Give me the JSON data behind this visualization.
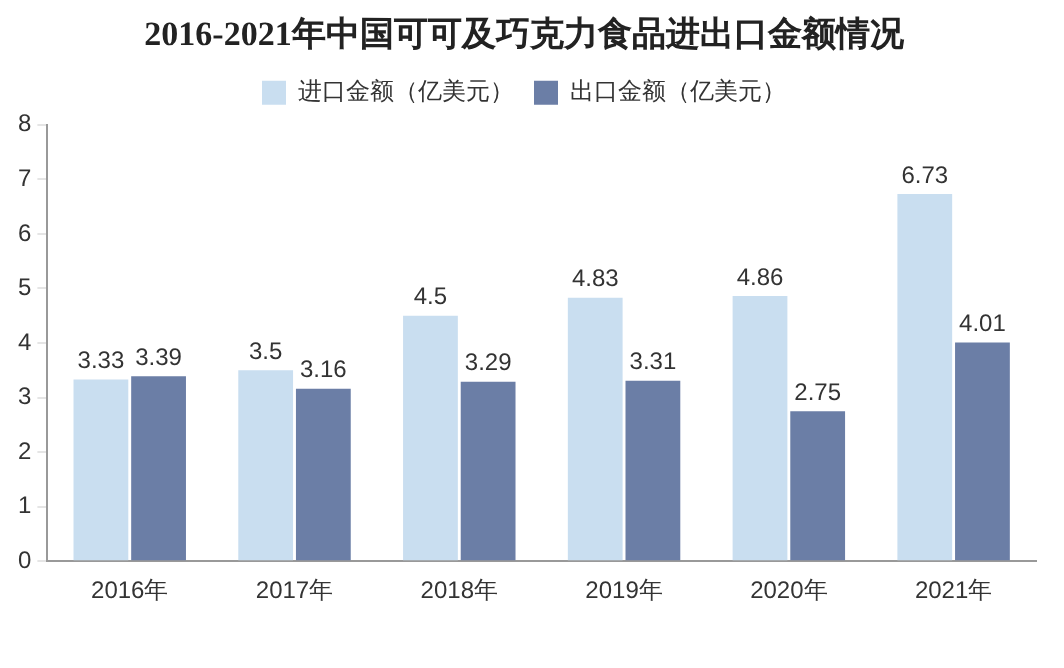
{
  "chart_data": {
    "type": "bar",
    "title": "2016-2021年中国可可及巧克力食品进出口金额情况",
    "categories": [
      "2016年",
      "2017年",
      "2018年",
      "2019年",
      "2020年",
      "2021年"
    ],
    "series": [
      {
        "name": "进口金额（亿美元）",
        "color": "#c9def0",
        "values": [
          3.33,
          3.5,
          4.5,
          4.83,
          4.86,
          6.73
        ]
      },
      {
        "name": "出口金额（亿美元）",
        "color": "#6b7ea6",
        "values": [
          3.39,
          3.16,
          3.29,
          3.31,
          2.75,
          4.01
        ]
      }
    ],
    "ylim": [
      0,
      8
    ],
    "yticks": [
      0,
      1,
      2,
      3,
      4,
      5,
      6,
      7,
      8
    ],
    "grid": false,
    "legend": "top",
    "data_labels": true
  }
}
